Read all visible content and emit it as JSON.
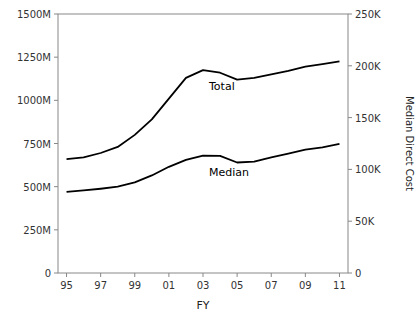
{
  "chart_data": {
    "type": "line",
    "categories": [
      "95",
      null,
      "97",
      null,
      "99",
      null,
      "01",
      null,
      "03",
      null,
      "05",
      null,
      "07",
      null,
      "09",
      null,
      "11"
    ],
    "series": [
      {
        "name": "Total",
        "color": "#000000",
        "values": [
          660,
          670,
          695,
          730,
          800,
          890,
          1010,
          1130,
          1175,
          1160,
          1120,
          1130,
          1150,
          1170,
          1195,
          1210,
          1225
        ]
      },
      {
        "name": "Median",
        "color": "#000000",
        "values": [
          470,
          478,
          488,
          500,
          525,
          565,
          615,
          655,
          680,
          678,
          640,
          645,
          670,
          692,
          715,
          728,
          748
        ]
      }
    ],
    "x_label": "FY",
    "y2_label": "Median Direct Cost",
    "ylim": [
      0,
      1500
    ],
    "yticks": [
      0,
      {
        "value": 250,
        "label": "250M"
      },
      {
        "value": 500,
        "label": "500M"
      },
      {
        "value": 750,
        "label": "750M"
      },
      {
        "value": 1000,
        "label": "1000M"
      },
      {
        "value": 1250,
        "label": "1250M"
      },
      {
        "value": 1500,
        "label": "1500M"
      }
    ],
    "y2lim": [
      0,
      250
    ],
    "y2ticks": [
      0,
      {
        "value": 50,
        "label": "50K"
      },
      {
        "value": 100,
        "label": "100K"
      },
      {
        "value": 150,
        "label": "150K"
      },
      {
        "value": 200,
        "label": "200K"
      },
      {
        "value": 250,
        "label": "250K"
      }
    ],
    "grid": false
  }
}
